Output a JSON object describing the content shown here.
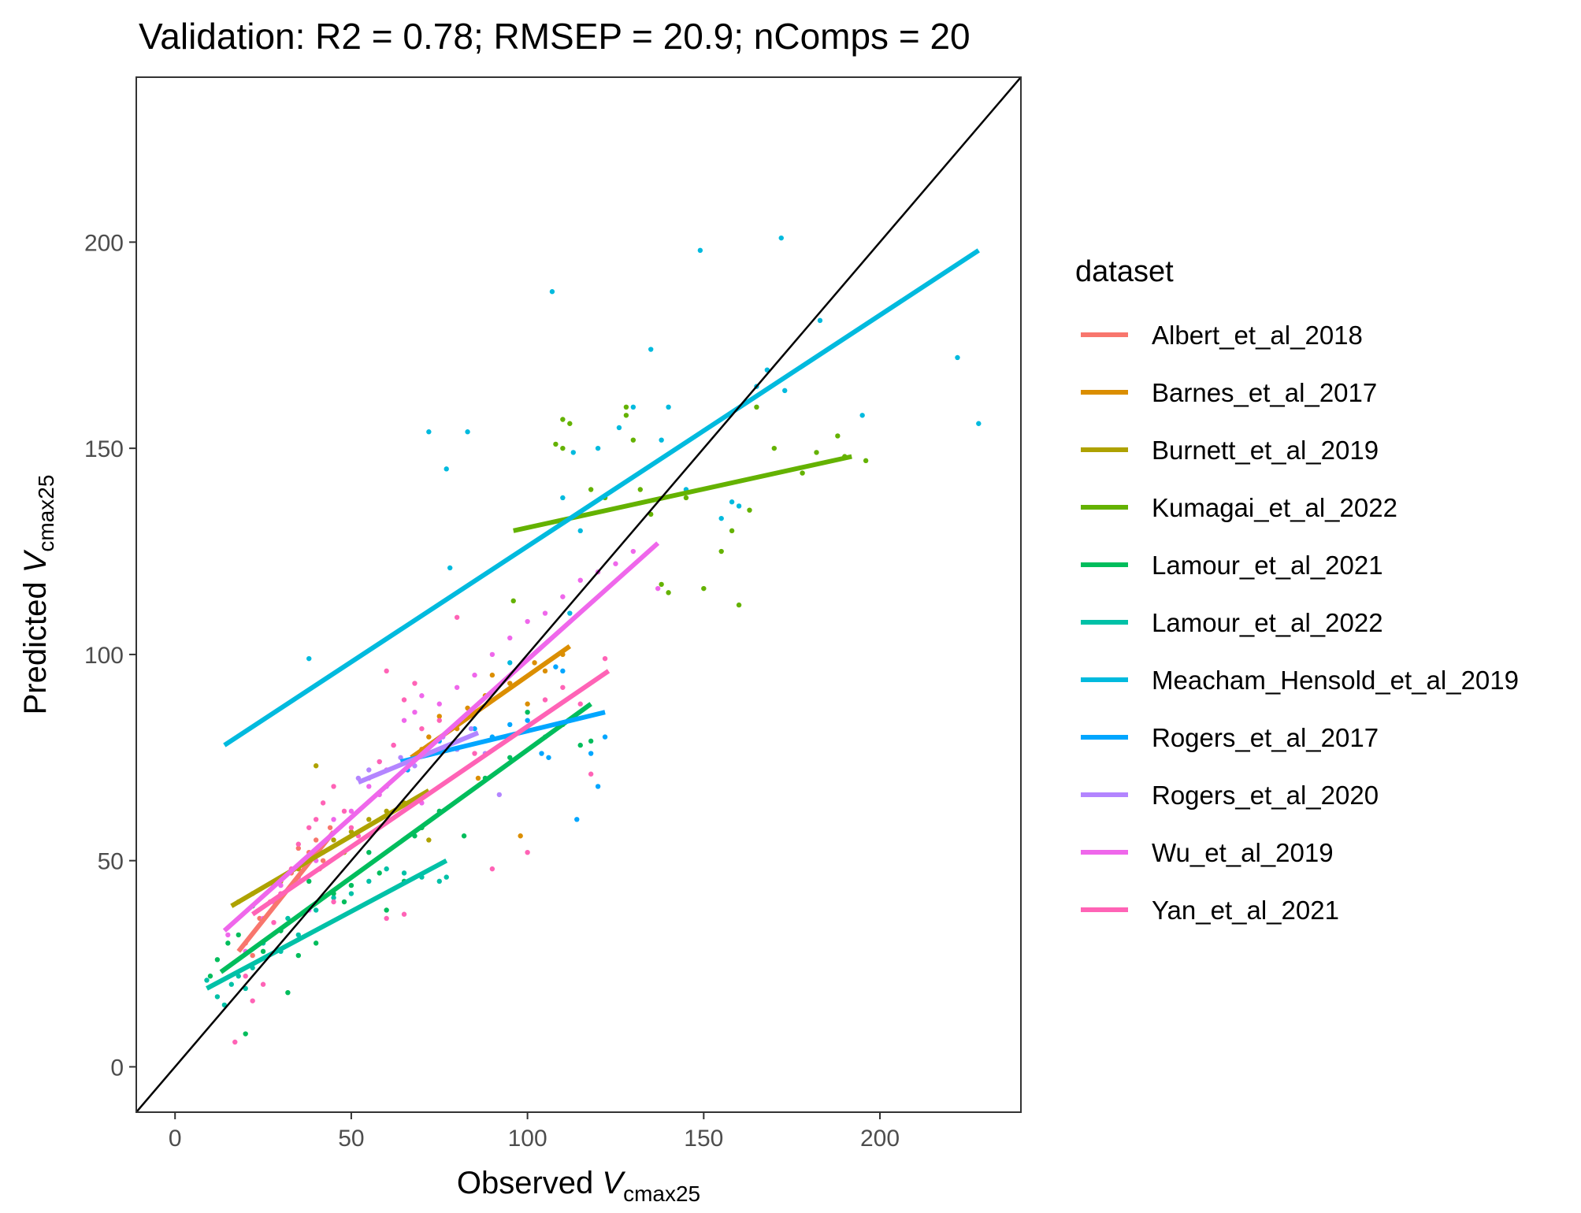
{
  "chart_data": {
    "type": "scatter",
    "title": "Validation: R2 = 0.78; RMSEP = 20.9; nComps = 20",
    "xlabel": {
      "main": "Observed ",
      "italic": "V",
      "sub": "cmax25"
    },
    "ylabel": {
      "main": "Predicted ",
      "italic": "V",
      "sub": "cmax25"
    },
    "xlim": [
      -11,
      240
    ],
    "ylim": [
      -11,
      240
    ],
    "xticks": [
      0,
      50,
      100,
      150,
      200
    ],
    "yticks": [
      0,
      50,
      100,
      150,
      200
    ],
    "grid": false,
    "reference_line": {
      "type": "1:1",
      "color": "#000000"
    },
    "legend": {
      "title": "dataset",
      "position": "right"
    },
    "series": [
      {
        "name": "Albert_et_al_2018",
        "color": "#F8766D",
        "fit": [
          [
            18,
            28
          ],
          [
            45,
            57
          ]
        ],
        "points": [
          [
            20,
            30
          ],
          [
            24,
            36
          ],
          [
            27,
            40
          ],
          [
            30,
            45
          ],
          [
            33,
            47
          ],
          [
            36,
            49
          ],
          [
            38,
            52
          ],
          [
            40,
            55
          ],
          [
            42,
            50
          ],
          [
            44,
            58
          ],
          [
            22,
            27
          ],
          [
            28,
            44
          ],
          [
            35,
            53
          ],
          [
            41,
            48
          ]
        ]
      },
      {
        "name": "Barnes_et_al_2017",
        "color": "#DB8E00",
        "fit": [
          [
            67,
            75
          ],
          [
            112,
            102
          ]
        ],
        "points": [
          [
            70,
            77
          ],
          [
            75,
            85
          ],
          [
            80,
            82
          ],
          [
            83,
            87
          ],
          [
            88,
            90
          ],
          [
            90,
            95
          ],
          [
            95,
            93
          ],
          [
            100,
            88
          ],
          [
            102,
            98
          ],
          [
            105,
            96
          ],
          [
            110,
            100
          ],
          [
            98,
            56
          ],
          [
            72,
            80
          ],
          [
            86,
            70
          ]
        ]
      },
      {
        "name": "Burnett_et_al_2019",
        "color": "#AEA200",
        "fit": [
          [
            16,
            39
          ],
          [
            72,
            67
          ]
        ],
        "points": [
          [
            18,
            40
          ],
          [
            22,
            42
          ],
          [
            30,
            45
          ],
          [
            35,
            48
          ],
          [
            40,
            73
          ],
          [
            45,
            55
          ],
          [
            50,
            57
          ],
          [
            55,
            60
          ],
          [
            60,
            62
          ],
          [
            65,
            64
          ],
          [
            70,
            58
          ],
          [
            72,
            55
          ],
          [
            48,
            52
          ],
          [
            38,
            50
          ]
        ]
      },
      {
        "name": "Kumagai_et_al_2022",
        "color": "#64B200",
        "fit": [
          [
            96,
            130
          ],
          [
            192,
            148
          ]
        ],
        "points": [
          [
            96,
            113
          ],
          [
            108,
            151
          ],
          [
            110,
            157
          ],
          [
            118,
            140
          ],
          [
            122,
            138
          ],
          [
            128,
            158
          ],
          [
            130,
            152
          ],
          [
            132,
            140
          ],
          [
            135,
            134
          ],
          [
            138,
            117
          ],
          [
            140,
            115
          ],
          [
            145,
            138
          ],
          [
            150,
            116
          ],
          [
            155,
            125
          ],
          [
            158,
            130
          ],
          [
            160,
            112
          ],
          [
            163,
            135
          ],
          [
            165,
            160
          ],
          [
            170,
            150
          ],
          [
            178,
            144
          ],
          [
            182,
            149
          ],
          [
            188,
            153
          ],
          [
            190,
            148
          ],
          [
            196,
            147
          ],
          [
            110,
            150
          ],
          [
            128,
            160
          ],
          [
            112,
            156
          ]
        ]
      },
      {
        "name": "Lamour_et_al_2021",
        "color": "#00BD5C",
        "fit": [
          [
            13,
            23
          ],
          [
            118,
            88
          ]
        ],
        "points": [
          [
            10,
            22
          ],
          [
            12,
            26
          ],
          [
            15,
            30
          ],
          [
            18,
            32
          ],
          [
            20,
            8
          ],
          [
            22,
            39
          ],
          [
            25,
            28
          ],
          [
            30,
            33
          ],
          [
            32,
            18
          ],
          [
            35,
            27
          ],
          [
            38,
            45
          ],
          [
            40,
            30
          ],
          [
            45,
            42
          ],
          [
            50,
            44
          ],
          [
            55,
            52
          ],
          [
            60,
            38
          ],
          [
            65,
            45
          ],
          [
            68,
            56
          ],
          [
            75,
            62
          ],
          [
            82,
            56
          ],
          [
            88,
            70
          ],
          [
            95,
            75
          ],
          [
            100,
            86
          ],
          [
            105,
            80
          ],
          [
            110,
            83
          ],
          [
            115,
            78
          ],
          [
            118,
            79
          ],
          [
            70,
            58
          ],
          [
            58,
            47
          ],
          [
            48,
            40
          ]
        ]
      },
      {
        "name": "Lamour_et_al_2022",
        "color": "#00C1A7",
        "fit": [
          [
            9,
            19
          ],
          [
            77,
            50
          ]
        ],
        "points": [
          [
            9,
            21
          ],
          [
            12,
            17
          ],
          [
            14,
            15
          ],
          [
            16,
            20
          ],
          [
            18,
            22
          ],
          [
            20,
            19
          ],
          [
            22,
            24
          ],
          [
            25,
            30
          ],
          [
            30,
            28
          ],
          [
            35,
            32
          ],
          [
            40,
            38
          ],
          [
            45,
            41
          ],
          [
            50,
            42
          ],
          [
            55,
            45
          ],
          [
            60,
            48
          ],
          [
            65,
            47
          ],
          [
            70,
            46
          ],
          [
            75,
            45
          ],
          [
            77,
            46
          ],
          [
            32,
            36
          ]
        ]
      },
      {
        "name": "Meacham_Hensold_et_al_2019",
        "color": "#00BADE",
        "fit": [
          [
            14,
            78
          ],
          [
            228,
            198
          ]
        ],
        "points": [
          [
            38,
            99
          ],
          [
            72,
            154
          ],
          [
            77,
            145
          ],
          [
            83,
            154
          ],
          [
            78,
            121
          ],
          [
            107,
            188
          ],
          [
            110,
            138
          ],
          [
            112,
            110
          ],
          [
            113,
            149
          ],
          [
            115,
            130
          ],
          [
            120,
            150
          ],
          [
            126,
            155
          ],
          [
            130,
            160
          ],
          [
            135,
            174
          ],
          [
            138,
            152
          ],
          [
            140,
            160
          ],
          [
            145,
            140
          ],
          [
            149,
            198
          ],
          [
            155,
            133
          ],
          [
            158,
            137
          ],
          [
            160,
            136
          ],
          [
            165,
            165
          ],
          [
            168,
            169
          ],
          [
            172,
            201
          ],
          [
            173,
            164
          ],
          [
            183,
            181
          ],
          [
            195,
            158
          ],
          [
            222,
            172
          ],
          [
            228,
            156
          ],
          [
            95,
            98
          ]
        ]
      },
      {
        "name": "Rogers_et_al_2017",
        "color": "#00A6FF",
        "fit": [
          [
            64,
            74
          ],
          [
            122,
            86
          ]
        ],
        "points": [
          [
            66,
            72
          ],
          [
            70,
            76
          ],
          [
            75,
            79
          ],
          [
            80,
            77
          ],
          [
            85,
            82
          ],
          [
            90,
            80
          ],
          [
            95,
            83
          ],
          [
            100,
            84
          ],
          [
            104,
            76
          ],
          [
            106,
            75
          ],
          [
            108,
            97
          ],
          [
            110,
            96
          ],
          [
            114,
            60
          ],
          [
            118,
            76
          ],
          [
            120,
            68
          ],
          [
            122,
            80
          ]
        ]
      },
      {
        "name": "Rogers_et_al_2020",
        "color": "#B385FF",
        "fit": [
          [
            52,
            69
          ],
          [
            86,
            81
          ]
        ],
        "points": [
          [
            52,
            70
          ],
          [
            55,
            72
          ],
          [
            58,
            74
          ],
          [
            60,
            68
          ],
          [
            64,
            75
          ],
          [
            68,
            73
          ],
          [
            72,
            78
          ],
          [
            76,
            80
          ],
          [
            80,
            77
          ],
          [
            84,
            82
          ],
          [
            88,
            76
          ],
          [
            92,
            66
          ]
        ]
      },
      {
        "name": "Wu_et_al_2019",
        "color": "#EF67EB",
        "fit": [
          [
            14,
            33
          ],
          [
            137,
            127
          ]
        ],
        "points": [
          [
            15,
            32
          ],
          [
            20,
            28
          ],
          [
            25,
            36
          ],
          [
            28,
            40
          ],
          [
            30,
            44
          ],
          [
            35,
            46
          ],
          [
            38,
            38
          ],
          [
            40,
            50
          ],
          [
            42,
            52
          ],
          [
            45,
            60
          ],
          [
            50,
            62
          ],
          [
            55,
            68
          ],
          [
            58,
            66
          ],
          [
            60,
            72
          ],
          [
            62,
            78
          ],
          [
            65,
            84
          ],
          [
            68,
            86
          ],
          [
            70,
            90
          ],
          [
            75,
            88
          ],
          [
            80,
            92
          ],
          [
            85,
            95
          ],
          [
            90,
            100
          ],
          [
            95,
            104
          ],
          [
            100,
            108
          ],
          [
            105,
            110
          ],
          [
            110,
            114
          ],
          [
            115,
            118
          ],
          [
            120,
            120
          ],
          [
            125,
            122
          ],
          [
            130,
            125
          ],
          [
            137,
            116
          ],
          [
            70,
            64
          ]
        ]
      },
      {
        "name": "Yan_et_al_2021",
        "color": "#FF63B6",
        "fit": [
          [
            22,
            37
          ],
          [
            123,
            96
          ]
        ],
        "points": [
          [
            17,
            6
          ],
          [
            20,
            22
          ],
          [
            22,
            16
          ],
          [
            25,
            20
          ],
          [
            28,
            35
          ],
          [
            30,
            42
          ],
          [
            33,
            48
          ],
          [
            35,
            54
          ],
          [
            38,
            58
          ],
          [
            40,
            60
          ],
          [
            42,
            64
          ],
          [
            45,
            68
          ],
          [
            48,
            62
          ],
          [
            50,
            58
          ],
          [
            52,
            56
          ],
          [
            55,
            70
          ],
          [
            58,
            74
          ],
          [
            60,
            96
          ],
          [
            62,
            78
          ],
          [
            65,
            89
          ],
          [
            68,
            93
          ],
          [
            70,
            82
          ],
          [
            75,
            84
          ],
          [
            80,
            109
          ],
          [
            85,
            76
          ],
          [
            90,
            48
          ],
          [
            95,
            80
          ],
          [
            100,
            52
          ],
          [
            105,
            89
          ],
          [
            110,
            92
          ],
          [
            115,
            88
          ],
          [
            118,
            71
          ],
          [
            122,
            99
          ],
          [
            65,
            37
          ],
          [
            60,
            36
          ],
          [
            45,
            40
          ]
        ]
      }
    ]
  }
}
